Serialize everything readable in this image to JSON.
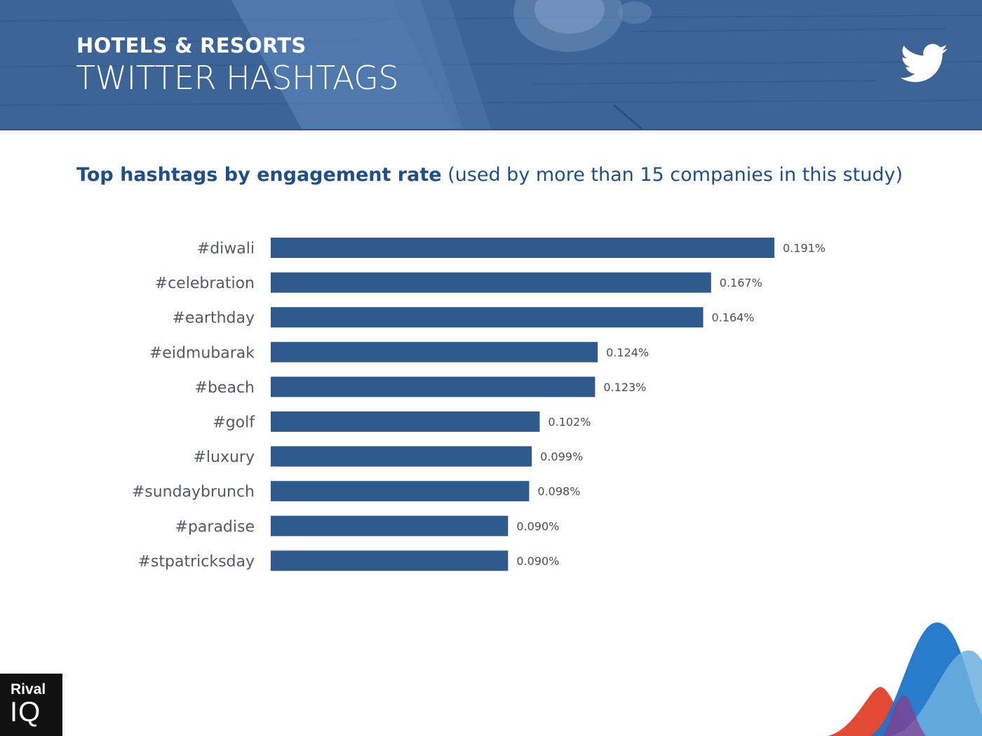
{
  "header": {
    "category": "HOTELS & RESORTS",
    "report_title": "TWITTER HASHTAGS",
    "icon": "twitter-bird-icon"
  },
  "chart_heading": {
    "bold": "Top hashtags by engagement rate",
    "light": "(used by more than 15 companies in this study)"
  },
  "chart_data": {
    "type": "bar",
    "orientation": "horizontal",
    "title": "Top hashtags by engagement rate (used by more than 15 companies in this study)",
    "categories": [
      "#diwali",
      "#celebration",
      "#earthday",
      "#eidmubarak",
      "#beach",
      "#golf",
      "#luxury",
      "#sundaybrunch",
      "#paradise",
      "#stpatricksday"
    ],
    "values": [
      0.191,
      0.167,
      0.164,
      0.124,
      0.123,
      0.102,
      0.099,
      0.098,
      0.09,
      0.09
    ],
    "value_labels": [
      "0.191%",
      "0.167%",
      "0.164%",
      "0.124%",
      "0.123%",
      "0.102%",
      "0.099%",
      "0.098%",
      "0.090%",
      "0.090%"
    ],
    "unit": "%",
    "xlim": [
      0,
      0.2
    ],
    "grid": false,
    "legend": "none",
    "bar_color": "#2e5a8d"
  },
  "logo": {
    "line1": "Rival",
    "line2": "IQ"
  },
  "colors": {
    "header_bg": "#3d6496",
    "heading": "#1f4f8a",
    "bar": "#2e5a8d",
    "accent_blue": "#1e74c8",
    "accent_red": "#e0402a",
    "accent_light": "#6cb0e0"
  }
}
